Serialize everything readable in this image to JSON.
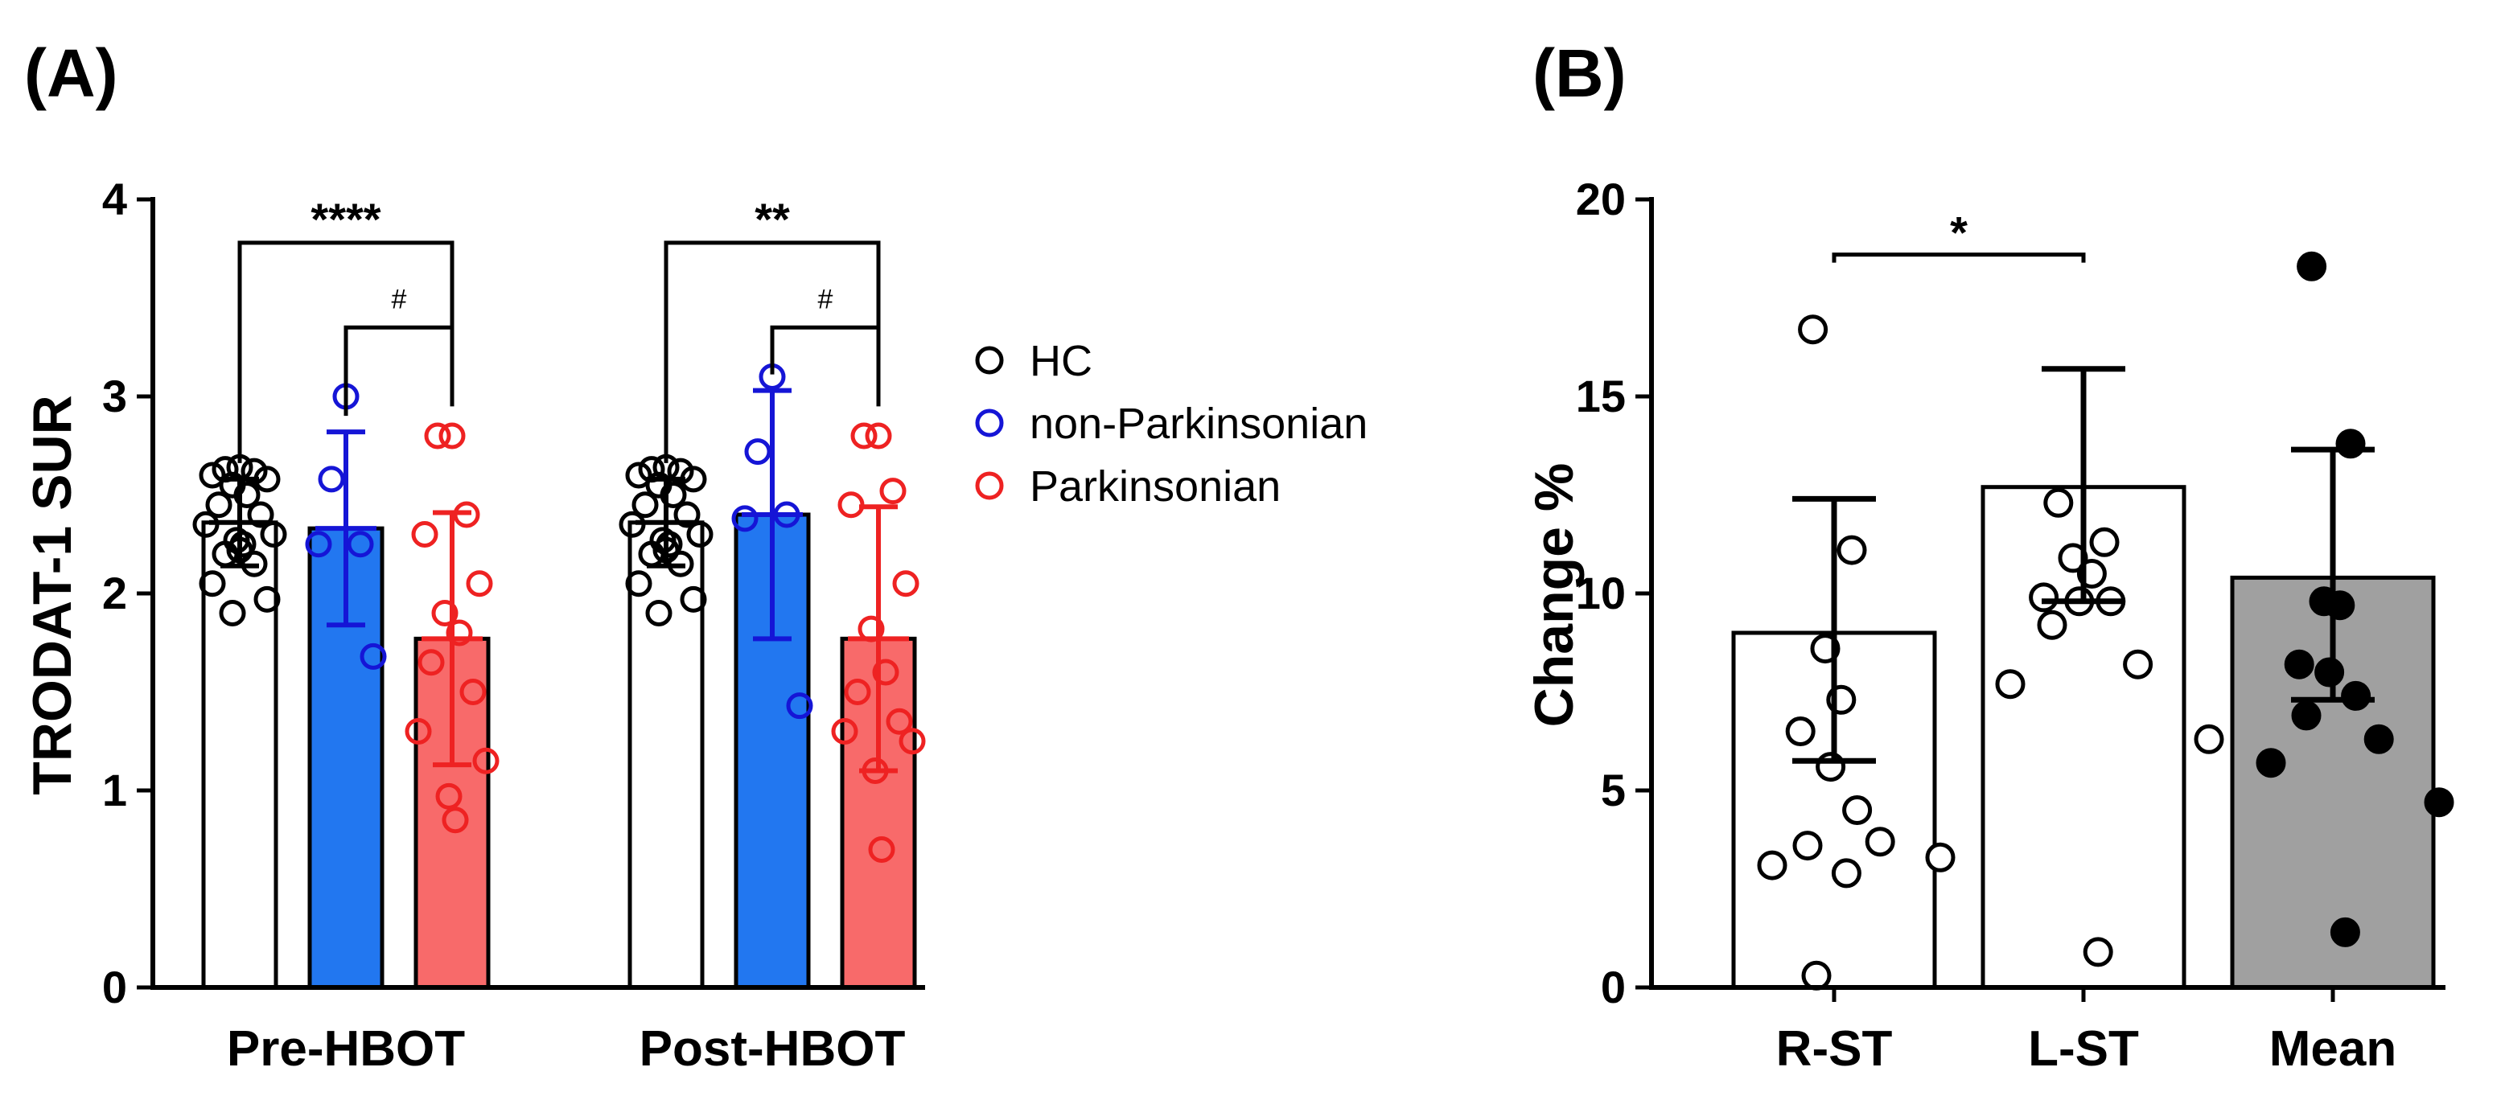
{
  "chart_data": [
    {
      "panel": "(A)",
      "type": "bar",
      "ylabel": "TRODAT-1 SUR",
      "ylim": [
        0,
        4
      ],
      "yticks": [
        "0",
        "1",
        "2",
        "3",
        "4"
      ],
      "groups": [
        "Pre-HBOT",
        "Post-HBOT"
      ],
      "legend": {
        "placement": "right",
        "entries": [
          {
            "label": "HC",
            "color": "#000000"
          },
          {
            "label": "non-Parkinsonian",
            "color": "#1515d6"
          },
          {
            "label": "Parkinsonian",
            "color": "#ee2222"
          }
        ]
      },
      "series": [
        {
          "name": "HC",
          "bar_fill": "#ffffff",
          "point_color": "#000000",
          "values": [
            2.36,
            2.36
          ],
          "sd": [
            0.22,
            0.22
          ],
          "points": [
            [
              2.64,
              2.63,
              2.62,
              2.6,
              2.58,
              2.55,
              2.5,
              2.45,
              2.4,
              2.35,
              2.3,
              2.27,
              2.25,
              2.22,
              2.2,
              2.15,
              2.05,
              1.97,
              1.9
            ],
            [
              2.64,
              2.63,
              2.62,
              2.6,
              2.58,
              2.55,
              2.5,
              2.45,
              2.4,
              2.35,
              2.3,
              2.27,
              2.25,
              2.22,
              2.2,
              2.15,
              2.05,
              1.97,
              1.9
            ]
          ]
        },
        {
          "name": "non-Parkinsonian",
          "bar_fill": "#2277f0",
          "point_color": "#1515d6",
          "values": [
            2.33,
            2.4
          ],
          "sd": [
            0.49,
            0.63
          ],
          "points": [
            [
              3.0,
              2.58,
              2.25,
              2.25,
              1.68
            ],
            [
              3.1,
              2.72,
              2.4,
              2.38,
              1.43
            ]
          ]
        },
        {
          "name": "Parkinsonian",
          "bar_fill": "#f86a6a",
          "point_color": "#ee2222",
          "values": [
            1.77,
            1.77
          ],
          "sd": [
            0.64,
            0.67
          ],
          "points": [
            [
              2.8,
              2.8,
              2.4,
              2.3,
              2.05,
              1.9,
              1.8,
              1.65,
              1.5,
              1.3,
              1.15,
              0.97,
              0.85
            ],
            [
              2.8,
              2.8,
              2.52,
              2.45,
              2.05,
              1.82,
              1.6,
              1.5,
              1.35,
              1.3,
              1.25,
              1.1,
              0.7
            ]
          ]
        }
      ],
      "annotations": [
        {
          "group": "Pre-HBOT",
          "from": "HC",
          "to": "Parkinsonian",
          "label": "****",
          "level": 3.78
        },
        {
          "group": "Pre-HBOT",
          "from": "non-Parkinsonian",
          "to": "Parkinsonian",
          "label": "#",
          "level": 3.35
        },
        {
          "group": "Post-HBOT",
          "from": "HC",
          "to": "Parkinsonian",
          "label": "**",
          "level": 3.78
        },
        {
          "group": "Post-HBOT",
          "from": "non-Parkinsonian",
          "to": "Parkinsonian",
          "label": "#",
          "level": 3.35
        }
      ]
    },
    {
      "panel": "(B)",
      "type": "bar",
      "ylabel": "Change %",
      "ylim": [
        0,
        20
      ],
      "yticks": [
        "0",
        "5",
        "10",
        "15",
        "20"
      ],
      "categories": [
        "R-ST",
        "L-ST",
        "Mean"
      ],
      "bar_fills": [
        "#ffffff",
        "#ffffff",
        "#a0a0a0"
      ],
      "point_fills": [
        "#ffffff",
        "#ffffff",
        "#000000"
      ],
      "values": [
        9.0,
        12.7,
        10.4
      ],
      "err_upper": [
        12.4,
        15.7,
        13.65
      ],
      "err_lower": [
        5.75,
        9.8,
        7.3
      ],
      "points": [
        [
          16.7,
          11.1,
          8.6,
          7.3,
          6.5,
          5.6,
          4.5,
          3.6,
          3.7,
          3.1,
          3.3,
          2.9,
          0.3
        ],
        [
          12.3,
          11.3,
          10.9,
          10.5,
          9.9,
          9.8,
          9.8,
          9.2,
          8.2,
          7.7,
          6.3,
          0.9
        ],
        [
          18.3,
          13.8,
          9.8,
          9.7,
          8.2,
          8.0,
          7.4,
          6.9,
          6.3,
          5.7,
          4.7,
          1.4
        ]
      ],
      "annotations": [
        {
          "from": "R-ST",
          "to": "L-ST",
          "label": "*",
          "level": 18.6
        }
      ]
    }
  ]
}
